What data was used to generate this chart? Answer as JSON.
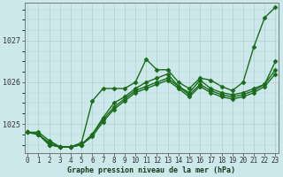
{
  "xlabel": "Graphe pression niveau de la mer (hPa)",
  "x_ticks": [
    0,
    1,
    2,
    3,
    4,
    5,
    6,
    7,
    8,
    9,
    10,
    11,
    12,
    13,
    14,
    15,
    16,
    17,
    18,
    19,
    20,
    21,
    22,
    23
  ],
  "ylim": [
    1024.3,
    1027.9
  ],
  "y_ticks": [
    1025,
    1026,
    1027
  ],
  "background_color": "#cce8ea",
  "grid_color": "#b0d0d3",
  "line_color": "#1a6b1a",
  "series": [
    [
      1024.8,
      1024.8,
      1024.6,
      1024.45,
      1024.45,
      1024.55,
      1025.55,
      1025.85,
      1025.85,
      1025.85,
      1026.0,
      1026.55,
      1026.3,
      1026.3,
      1026.0,
      1025.85,
      1026.1,
      1026.05,
      1025.9,
      1025.8,
      1026.0,
      1026.85,
      1027.55,
      1027.8
    ],
    [
      1024.8,
      1024.75,
      1024.55,
      1024.45,
      1024.45,
      1024.5,
      1024.75,
      1025.15,
      1025.5,
      1025.65,
      1025.85,
      1026.0,
      1026.1,
      1026.2,
      1025.9,
      1025.75,
      1026.05,
      1025.85,
      1025.75,
      1025.7,
      1025.75,
      1025.85,
      1025.95,
      1026.5
    ],
    [
      1024.8,
      1024.75,
      1024.5,
      1024.45,
      1024.45,
      1024.5,
      1024.75,
      1025.1,
      1025.4,
      1025.6,
      1025.8,
      1025.9,
      1026.0,
      1026.1,
      1025.9,
      1025.7,
      1025.95,
      1025.8,
      1025.7,
      1025.65,
      1025.7,
      1025.8,
      1025.95,
      1026.3
    ],
    [
      1024.8,
      1024.75,
      1024.5,
      1024.45,
      1024.45,
      1024.5,
      1024.7,
      1025.05,
      1025.35,
      1025.55,
      1025.75,
      1025.85,
      1025.95,
      1026.05,
      1025.85,
      1025.65,
      1025.9,
      1025.75,
      1025.65,
      1025.6,
      1025.65,
      1025.75,
      1025.9,
      1026.2
    ]
  ],
  "marker": "D",
  "marker_size": 2.5,
  "line_width": 1.0,
  "tick_fontsize": 5.5,
  "xlabel_fontsize": 6.0,
  "figsize": [
    3.2,
    2.0
  ],
  "dpi": 100
}
